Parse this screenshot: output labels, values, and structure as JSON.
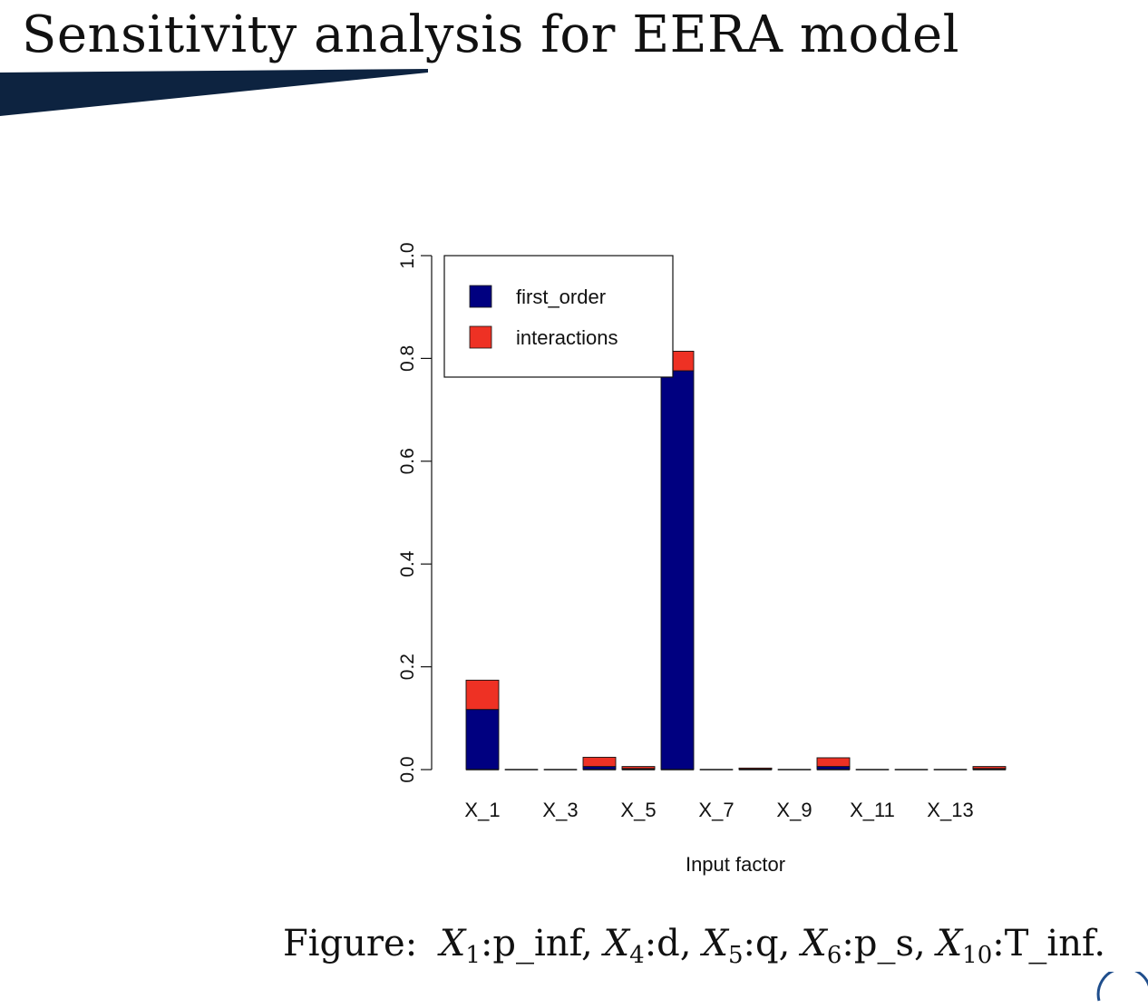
{
  "slide": {
    "title": "Sensitivity analysis for EERA model",
    "caption": {
      "prefix": "Figure:",
      "items": [
        {
          "var": "X",
          "sub": "1",
          "label": ":p_inf,"
        },
        {
          "var": "X",
          "sub": "4",
          "label": ":d,"
        },
        {
          "var": "X",
          "sub": "5",
          "label": ":q,"
        },
        {
          "var": "X",
          "sub": "6",
          "label": ":p_s,"
        },
        {
          "var": "X",
          "sub": "10",
          "label": ":T_inf."
        }
      ]
    },
    "accent_color": "#0d2340"
  },
  "chart_data": {
    "type": "bar",
    "stacked": true,
    "categories": [
      "X_1",
      "X_2",
      "X_3",
      "X_4",
      "X_5",
      "X_6",
      "X_7",
      "X_8",
      "X_9",
      "X_10",
      "X_11",
      "X_12",
      "X_13",
      "X_14"
    ],
    "tick_labels": [
      "X_1",
      "X_3",
      "X_5",
      "X_7",
      "X_9",
      "X_11",
      "X_13"
    ],
    "series": [
      {
        "name": "first_order",
        "color": "#000080",
        "values": [
          0.117,
          0,
          0,
          0.006,
          0.002,
          0.776,
          0,
          0.001,
          0,
          0.006,
          0,
          0,
          0,
          0.002
        ]
      },
      {
        "name": "interactions",
        "color": "#ee3124",
        "values": [
          0.057,
          0,
          0,
          0.018,
          0.004,
          0.038,
          0,
          0.002,
          0,
          0.017,
          0,
          0,
          0,
          0.004
        ]
      }
    ],
    "xlabel": "Input factor",
    "ylabel": "",
    "ylim": [
      0,
      1.0
    ],
    "yticks": [
      0.0,
      0.2,
      0.4,
      0.6,
      0.8,
      1.0
    ],
    "legend": "top-left",
    "grid": false
  }
}
